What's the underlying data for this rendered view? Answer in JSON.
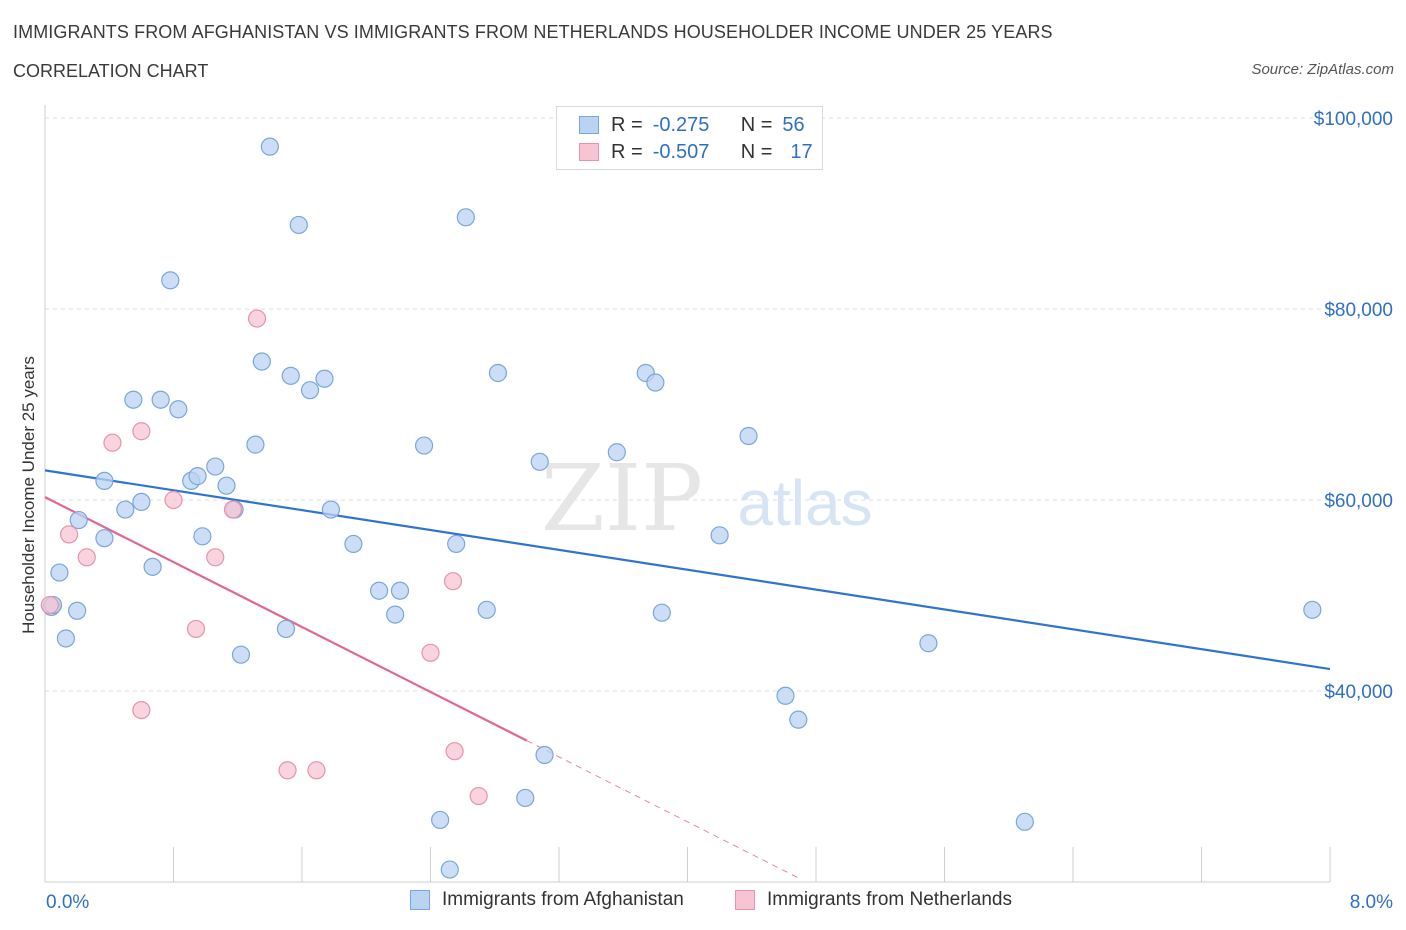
{
  "header": {
    "title": "IMMIGRANTS FROM AFGHANISTAN VS IMMIGRANTS FROM NETHERLANDS HOUSEHOLDER INCOME UNDER 25 YEARS",
    "subtitle": "CORRELATION CHART",
    "source": "Source: ZipAtlas.com"
  },
  "legend": {
    "afghanistan": {
      "r_label": "R =",
      "r_value": "-0.275",
      "n_label": "N =",
      "n_value": "56"
    },
    "netherlands": {
      "r_label": "R =",
      "r_value": "-0.507",
      "n_label": "N =",
      "n_value": "17"
    }
  },
  "bottom_legend": {
    "afghanistan": "Immigrants from Afghanistan",
    "netherlands": "Immigrants from Netherlands"
  },
  "watermark": {
    "zip": "ZIP",
    "atlas": "atlas"
  },
  "colors": {
    "afghanistan_fill": "#b9d3f3",
    "afghanistan_stroke": "#7aa6dc",
    "afghanistan_line": "#2f74d0",
    "netherlands_fill": "#f7c4d3",
    "netherlands_stroke": "#e892ad",
    "netherlands_line": "#e0678f",
    "axis_label": "#2f6fc6"
  },
  "chart_data": {
    "type": "scatter",
    "title": "IMMIGRANTS FROM AFGHANISTAN VS IMMIGRANTS FROM NETHERLANDS HOUSEHOLDER INCOME UNDER 25 YEARS",
    "xlabel": "",
    "ylabel": "Householder Income Under 25 years",
    "xlim": [
      0,
      8
    ],
    "ylim": [
      20000,
      100000
    ],
    "x_tick_labels": [
      "0.0%",
      "8.0%"
    ],
    "y_ticks": [
      100000,
      80000,
      60000,
      40000
    ],
    "y_tick_labels": [
      "$100,000",
      "$80,000",
      "$60,000",
      "$40,000"
    ],
    "grid": true,
    "series": [
      {
        "name": "Immigrants from Afghanistan",
        "points": [
          [
            0.04,
            48800
          ],
          [
            0.09,
            52400
          ],
          [
            0.13,
            45500
          ],
          [
            0.2,
            48400
          ],
          [
            0.21,
            57900
          ],
          [
            0.37,
            56000
          ],
          [
            0.37,
            62000
          ],
          [
            0.5,
            59000
          ],
          [
            0.55,
            70500
          ],
          [
            0.6,
            59800
          ],
          [
            0.67,
            53000
          ],
          [
            0.72,
            70500
          ],
          [
            0.78,
            83000
          ],
          [
            0.83,
            69500
          ],
          [
            0.91,
            62000
          ],
          [
            0.95,
            62500
          ],
          [
            0.98,
            56200
          ],
          [
            1.06,
            63500
          ],
          [
            1.13,
            61500
          ],
          [
            1.18,
            59000
          ],
          [
            1.22,
            43800
          ],
          [
            1.31,
            65800
          ],
          [
            1.35,
            74500
          ],
          [
            1.4,
            97000
          ],
          [
            1.5,
            46500
          ],
          [
            1.53,
            73000
          ],
          [
            1.58,
            88800
          ],
          [
            1.65,
            71500
          ],
          [
            1.74,
            72700
          ],
          [
            1.78,
            59000
          ],
          [
            1.92,
            55400
          ],
          [
            2.08,
            50500
          ],
          [
            2.18,
            48000
          ],
          [
            2.21,
            50500
          ],
          [
            2.36,
            65700
          ],
          [
            2.46,
            26500
          ],
          [
            2.52,
            21300
          ],
          [
            2.56,
            55400
          ],
          [
            2.62,
            89600
          ],
          [
            2.75,
            48500
          ],
          [
            2.82,
            73300
          ],
          [
            2.99,
            28800
          ],
          [
            3.08,
            64000
          ],
          [
            3.11,
            33300
          ],
          [
            3.56,
            65000
          ],
          [
            3.74,
            73300
          ],
          [
            3.8,
            72300
          ],
          [
            3.84,
            48200
          ],
          [
            4.2,
            56300
          ],
          [
            4.38,
            66700
          ],
          [
            4.61,
            39500
          ],
          [
            4.69,
            37000
          ],
          [
            5.5,
            45000
          ],
          [
            6.1,
            26300
          ],
          [
            7.89,
            48500
          ],
          [
            0.05,
            49000
          ]
        ]
      },
      {
        "name": "Immigrants from Netherlands",
        "points": [
          [
            0.03,
            49000
          ],
          [
            0.15,
            56400
          ],
          [
            0.26,
            54000
          ],
          [
            0.42,
            66000
          ],
          [
            0.6,
            38000
          ],
          [
            0.6,
            67200
          ],
          [
            0.8,
            60000
          ],
          [
            0.94,
            46500
          ],
          [
            1.06,
            54000
          ],
          [
            1.17,
            59000
          ],
          [
            1.32,
            79000
          ],
          [
            1.51,
            31700
          ],
          [
            1.69,
            31700
          ],
          [
            2.4,
            44000
          ],
          [
            2.54,
            51500
          ],
          [
            2.55,
            33700
          ],
          [
            2.7,
            29000
          ]
        ]
      }
    ],
    "trend_lines": [
      {
        "name": "Immigrants from Afghanistan",
        "x": [
          0,
          8
        ],
        "y": [
          63100,
          42300
        ]
      },
      {
        "name": "Immigrants from Netherlands",
        "x": [
          0,
          3.0
        ],
        "y": [
          60300,
          34800
        ],
        "dashed_extension_x": [
          3.0,
          4.7
        ]
      }
    ]
  }
}
